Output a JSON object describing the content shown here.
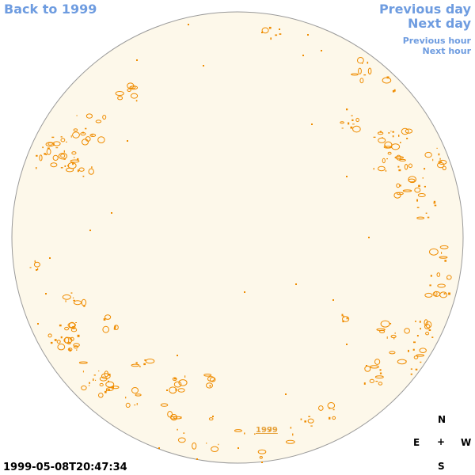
{
  "nav": {
    "back_label": "Back to 1999",
    "previous_day_label": "Previous day",
    "next_day_label": "Next day",
    "previous_hour_label": "Previous hour",
    "next_hour_label": "Next hour"
  },
  "disk": {
    "year_link_label": "1999",
    "fill_color": "#fdf8ea",
    "outline_color": "#9a9a9a",
    "feature_color": "#ef8c00"
  },
  "compass": {
    "north": "N",
    "east": "E",
    "center": "+",
    "west": "W",
    "south": "S"
  },
  "timestamp": "1999-05-08T20:47:34"
}
